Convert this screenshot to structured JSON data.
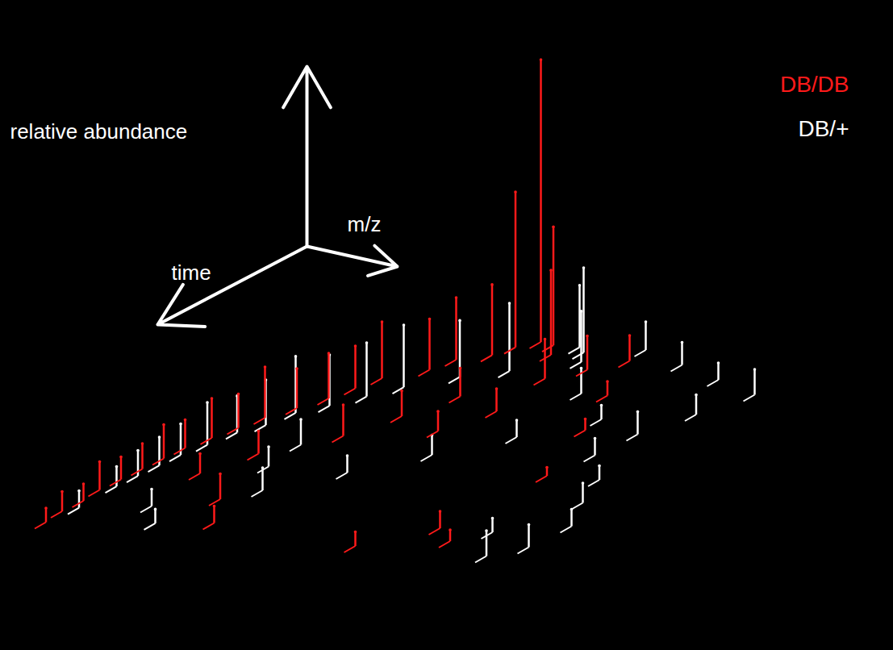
{
  "chart_data": {
    "type": "spikes3d",
    "x_label": "time",
    "y_label": "m/z",
    "z_label": "relative abundance",
    "xlim": [
      0,
      100
    ],
    "ylim": [
      0,
      100
    ],
    "zlim": [
      0,
      100
    ],
    "tick_labels": false,
    "legend": "top-right",
    "series": [
      {
        "name": "DB/DB",
        "color": "#ff1a1a",
        "time": [
          5,
          8,
          6,
          10,
          12,
          15,
          20,
          25,
          30,
          35,
          40,
          45,
          50,
          55,
          60,
          65,
          70,
          75,
          80,
          85,
          90,
          95,
          60,
          70,
          80,
          90,
          50,
          40,
          30,
          20,
          15,
          10,
          25,
          40,
          60,
          85,
          95,
          90,
          35,
          45
        ],
        "mz": [
          40,
          37,
          43,
          45,
          35,
          30,
          28,
          22,
          20,
          18,
          15,
          12,
          10,
          8,
          6,
          5,
          4,
          3,
          2,
          2,
          1,
          1,
          20,
          15,
          25,
          30,
          30,
          35,
          40,
          50,
          55,
          60,
          65,
          70,
          75,
          70,
          60,
          75,
          50,
          45
        ],
        "values": [
          100,
          55,
          42,
          30,
          25,
          22,
          18,
          20,
          15,
          16,
          14,
          18,
          12,
          14,
          10,
          12,
          9,
          8,
          10,
          6,
          7,
          5,
          8,
          7,
          9,
          6,
          11,
          9,
          10,
          14,
          12,
          9,
          5,
          4,
          3,
          6,
          5,
          4,
          8,
          7
        ]
      },
      {
        "name": "DB/+",
        "color": "#ffffff",
        "time": [
          8,
          6,
          12,
          18,
          22,
          28,
          33,
          38,
          42,
          48,
          52,
          58,
          63,
          68,
          73,
          78,
          88,
          5,
          10,
          15,
          20,
          30,
          40,
          50,
          60,
          70,
          80,
          90,
          95,
          85,
          45,
          55,
          65,
          35,
          25,
          75,
          65,
          55,
          85,
          92
        ],
        "mz": [
          50,
          48,
          52,
          42,
          35,
          28,
          24,
          20,
          16,
          14,
          11,
          9,
          7,
          6,
          5,
          4,
          3,
          60,
          70,
          80,
          90,
          85,
          80,
          78,
          85,
          88,
          92,
          90,
          85,
          80,
          60,
          50,
          40,
          70,
          60,
          30,
          25,
          25,
          15,
          20
        ],
        "values": [
          30,
          22,
          18,
          24,
          20,
          22,
          19,
          18,
          20,
          16,
          13,
          15,
          11,
          10,
          9,
          7,
          6,
          10,
          8,
          6,
          9,
          7,
          8,
          6,
          5,
          7,
          6,
          8,
          9,
          5,
          6,
          7,
          6,
          5,
          9,
          8,
          7,
          9,
          6,
          5
        ]
      }
    ]
  }
}
